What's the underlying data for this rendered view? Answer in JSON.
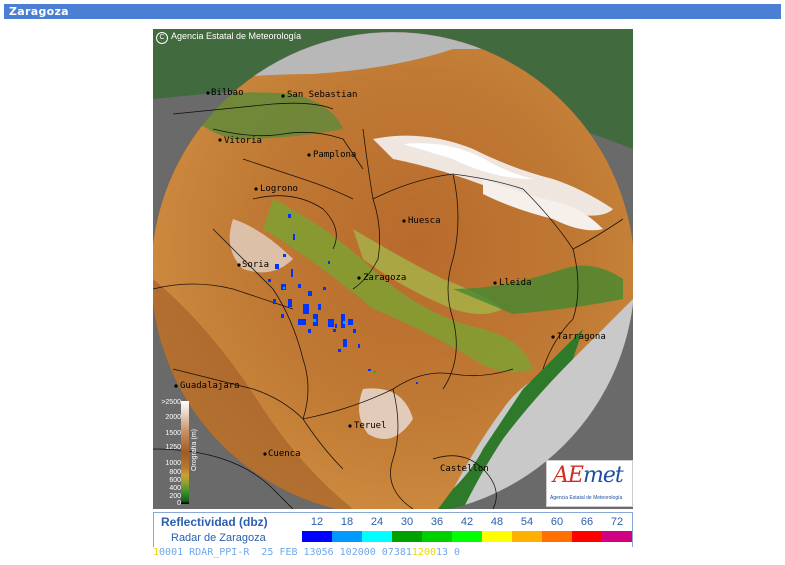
{
  "header": {
    "title": "Zaragoza"
  },
  "map": {
    "copyright": "Agencia Estatal de Meteorología",
    "cities": [
      {
        "name": "Bilbao"
      },
      {
        "name": "San Sebastian"
      },
      {
        "name": "Vitoria"
      },
      {
        "name": "Pamplona"
      },
      {
        "name": "Logrono"
      },
      {
        "name": "Huesca"
      },
      {
        "name": "Soria"
      },
      {
        "name": "Zaragoza"
      },
      {
        "name": "Lleida"
      },
      {
        "name": "Tarragona"
      },
      {
        "name": "Guadalajara"
      },
      {
        "name": "Teruel"
      },
      {
        "name": "Cuenca"
      },
      {
        "name": "Castellon"
      }
    ]
  },
  "orography": {
    "title": "Orografía (m)",
    "values": [
      ">2500",
      "2000",
      "1500",
      "1250",
      "1000",
      "800",
      "600",
      "400",
      "200",
      "0"
    ]
  },
  "logo": {
    "text_a": "AE",
    "text_b": "met",
    "subtitle": "Agencia Estatal de Meteorología"
  },
  "legend": {
    "title": "Reflectividad (dbz)",
    "subtitle": "Radar de Zaragoza",
    "scale": [
      {
        "value": "12",
        "color": "#0000ff"
      },
      {
        "value": "18",
        "color": "#0099ff"
      },
      {
        "value": "24",
        "color": "#00ffff"
      },
      {
        "value": "30",
        "color": "#00a000"
      },
      {
        "value": "36",
        "color": "#00d000"
      },
      {
        "value": "42",
        "color": "#00ff00"
      },
      {
        "value": "48",
        "color": "#ffff00"
      },
      {
        "value": "54",
        "color": "#ffb000"
      },
      {
        "value": "60",
        "color": "#ff7000"
      },
      {
        "value": "66",
        "color": "#ff0000"
      },
      {
        "value": "72",
        "color": "#d00080"
      }
    ]
  },
  "status": {
    "prefix": "1",
    "text": "0001 RDAR_PPI-R  25 FEB 13056 102000 07381",
    "highlight": "1200",
    "suffix": "13 0"
  }
}
